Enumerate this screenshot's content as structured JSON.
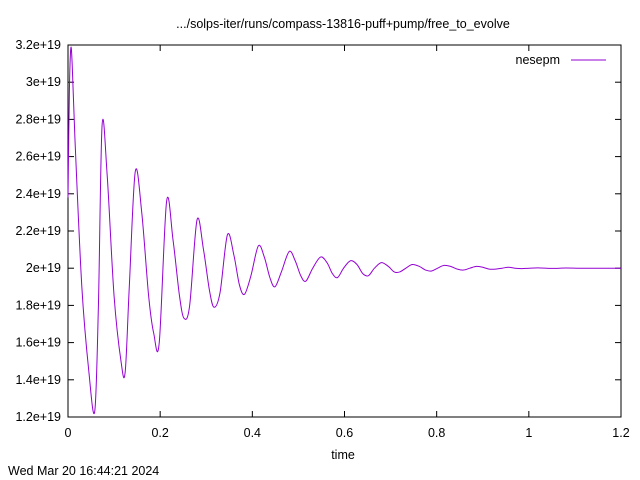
{
  "chart_data": {
    "type": "line",
    "title": ".../solps-iter/runs/compass-13816-puff+pump/free_to_evolve",
    "xlabel": "time",
    "ylabel": "",
    "xlim": [
      0,
      1.2
    ],
    "ylim": [
      1.2e+19,
      3.2e+19
    ],
    "x_ticks": [
      0,
      0.2,
      0.4,
      0.6,
      0.8,
      1,
      1.2
    ],
    "x_tick_labels": [
      "0",
      "0.2",
      "0.4",
      "0.6",
      "0.8",
      "1",
      "1.2"
    ],
    "y_ticks": [
      1.2e+19,
      1.4e+19,
      1.6e+19,
      1.8e+19,
      2e+19,
      2.2e+19,
      2.4e+19,
      2.6e+19,
      2.8e+19,
      3e+19,
      3.2e+19
    ],
    "y_tick_labels": [
      "1.2e+19",
      "1.4e+19",
      "1.6e+19",
      "1.8e+19",
      "2e+19",
      "2.2e+19",
      "2.4e+19",
      "2.6e+19",
      "2.8e+19",
      "3e+19",
      "3.2e+19"
    ],
    "grid": false,
    "legend_position": "top-right",
    "series_color": "#9400d3",
    "series": [
      {
        "name": "nesepm",
        "x": [
          0,
          0.003,
          0.006,
          0.009,
          0.015,
          0.03,
          0.045,
          0.058,
          0.066,
          0.074,
          0.085,
          0.1,
          0.115,
          0.124,
          0.133,
          0.146,
          0.16,
          0.175,
          0.186,
          0.198,
          0.214,
          0.228,
          0.242,
          0.252,
          0.264,
          0.28,
          0.294,
          0.307,
          0.317,
          0.33,
          0.346,
          0.36,
          0.372,
          0.383,
          0.397,
          0.413,
          0.426,
          0.438,
          0.449,
          0.463,
          0.48,
          0.493,
          0.505,
          0.516,
          0.531,
          0.548,
          0.562,
          0.574,
          0.585,
          0.598,
          0.613,
          0.627,
          0.64,
          0.652,
          0.665,
          0.68,
          0.695,
          0.708,
          0.72,
          0.733,
          0.747,
          0.762,
          0.776,
          0.789,
          0.802,
          0.816,
          0.83,
          0.845,
          0.858,
          0.872,
          0.886,
          0.9,
          0.914,
          0.928,
          0.942,
          0.956,
          0.97,
          0.985,
          1.0,
          1.02,
          1.05,
          1.08,
          1.11,
          1.14,
          1.17,
          1.2
        ],
        "values": [
          2.38e+19,
          2.95e+19,
          3.18e+19,
          3.1e+19,
          2.7e+19,
          1.9e+19,
          1.45e+19,
          1.23e+19,
          1.8e+19,
          2.77e+19,
          2.5e+19,
          1.85e+19,
          1.5e+19,
          1.44e+19,
          1.9e+19,
          2.52e+19,
          2.3e+19,
          1.85e+19,
          1.65e+19,
          1.6e+19,
          2.36e+19,
          2.15e+19,
          1.85e+19,
          1.73e+19,
          1.8e+19,
          2.26e+19,
          2.1e+19,
          1.88e+19,
          1.79e+19,
          1.87e+19,
          2.18e+19,
          2.07e+19,
          1.91e+19,
          1.86e+19,
          1.96e+19,
          2.12e+19,
          2.06e+19,
          1.95e+19,
          1.9e+19,
          1.98e+19,
          2.09e+19,
          2.04e+19,
          1.96e+19,
          1.93e+19,
          2e+19,
          2.06e+19,
          2.03e+19,
          1.97e+19,
          1.95e+19,
          2e+19,
          2.04e+19,
          2.02e+19,
          1.97e+19,
          1.96e+19,
          2e+19,
          2.03e+19,
          2.01e+19,
          1.98e+19,
          1.98e+19,
          2e+19,
          2.02e+19,
          2.01e+19,
          1.99e+19,
          1.985e+19,
          2e+19,
          2.015e+19,
          2.01e+19,
          1.995e+19,
          1.99e+19,
          2e+19,
          2.01e+19,
          2.005e+19,
          1.995e+19,
          1.995e+19,
          2e+19,
          2.005e+19,
          2e+19,
          1.998e+19,
          2e+19,
          2.002e+19,
          1.999e+19,
          2.001e+19,
          2e+19,
          2e+19,
          2e+19,
          2e+19
        ]
      }
    ]
  },
  "footer": {
    "timestamp": "Wed Mar 20 16:44:21 2024"
  }
}
